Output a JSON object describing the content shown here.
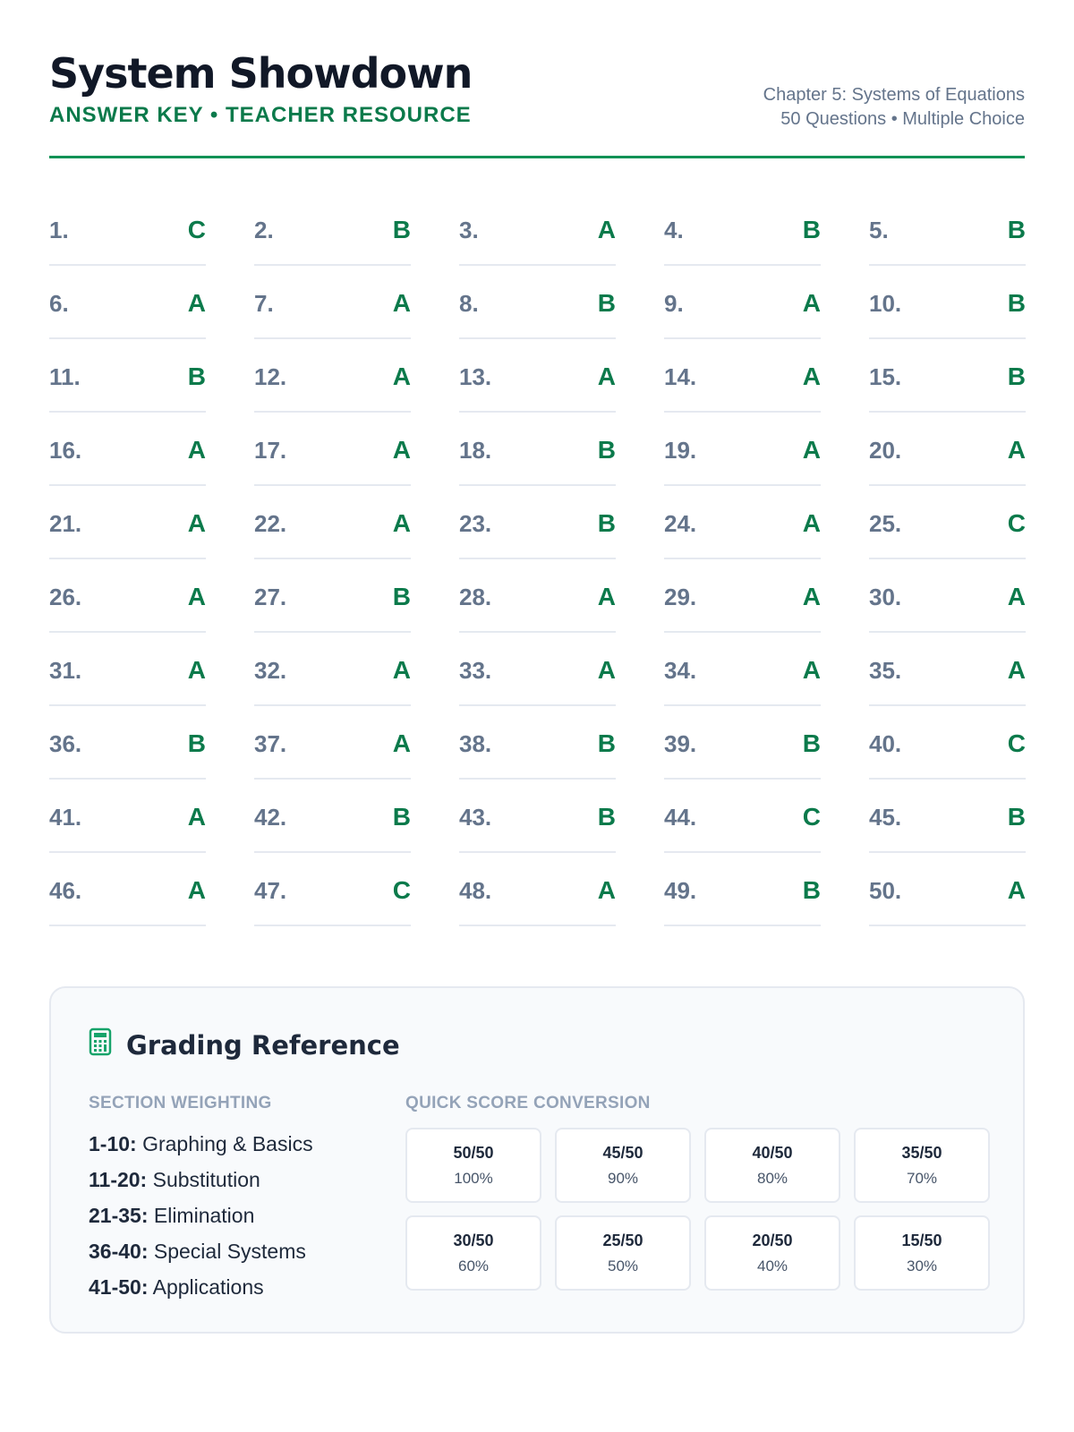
{
  "header": {
    "title": "System Showdown",
    "subtitle": "ANSWER KEY • TEACHER RESOURCE",
    "chapter": "Chapter 5: Systems of Equations",
    "info": "50 Questions • Multiple Choice"
  },
  "answers": [
    "C",
    "B",
    "A",
    "B",
    "B",
    "A",
    "A",
    "B",
    "A",
    "B",
    "B",
    "A",
    "A",
    "A",
    "B",
    "A",
    "A",
    "B",
    "A",
    "A",
    "A",
    "A",
    "B",
    "A",
    "C",
    "A",
    "B",
    "A",
    "A",
    "A",
    "A",
    "A",
    "A",
    "A",
    "A",
    "B",
    "A",
    "B",
    "B",
    "C",
    "A",
    "B",
    "B",
    "C",
    "B",
    "A",
    "C",
    "A",
    "B",
    "A"
  ],
  "grading": {
    "title": "Grading Reference",
    "weighting_label": "SECTION WEIGHTING",
    "sections": [
      {
        "range": "1-10:",
        "name": "Graphing & Basics"
      },
      {
        "range": "11-20:",
        "name": "Substitution"
      },
      {
        "range": "21-35:",
        "name": "Elimination"
      },
      {
        "range": "36-40:",
        "name": "Special Systems"
      },
      {
        "range": "41-50:",
        "name": "Applications"
      }
    ],
    "conversion_label": "QUICK SCORE CONVERSION",
    "scores": [
      {
        "score": "50/50",
        "pct": "100%"
      },
      {
        "score": "45/50",
        "pct": "90%"
      },
      {
        "score": "40/50",
        "pct": "80%"
      },
      {
        "score": "35/50",
        "pct": "70%"
      },
      {
        "score": "30/50",
        "pct": "60%"
      },
      {
        "score": "25/50",
        "pct": "50%"
      },
      {
        "score": "20/50",
        "pct": "40%"
      },
      {
        "score": "15/50",
        "pct": "30%"
      }
    ]
  },
  "colors": {
    "accent": "#0b7a4b",
    "rule": "#0b9255"
  }
}
